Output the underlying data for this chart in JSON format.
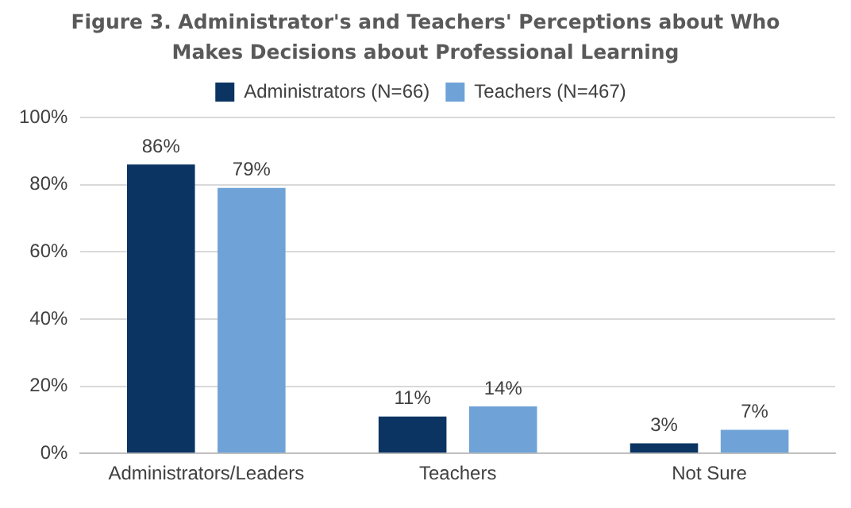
{
  "chart_data": {
    "type": "bar",
    "title": "Figure 3. Administrator's and Teachers' Perceptions about Who Makes Decisions about Professional Learning",
    "categories": [
      "Administrators/Leaders",
      "Teachers",
      "Not Sure"
    ],
    "series": [
      {
        "name": "Administrators (N=66)",
        "color": "#0b3462",
        "values": [
          86,
          11,
          3
        ],
        "value_labels": [
          "86%",
          "11%",
          "3%"
        ]
      },
      {
        "name": "Teachers (N=467)",
        "color": "#6fa3d7",
        "values": [
          79,
          14,
          7
        ],
        "value_labels": [
          "79%",
          "14%",
          "7%"
        ]
      }
    ],
    "ylim": [
      0,
      100
    ],
    "yticks": [
      {
        "value": 0,
        "label": "0%"
      },
      {
        "value": 20,
        "label": "20%"
      },
      {
        "value": 40,
        "label": "40%"
      },
      {
        "value": 60,
        "label": "60%"
      },
      {
        "value": 80,
        "label": "80%"
      },
      {
        "value": 100,
        "label": "100%"
      }
    ],
    "grid": "y",
    "legend": "top"
  }
}
